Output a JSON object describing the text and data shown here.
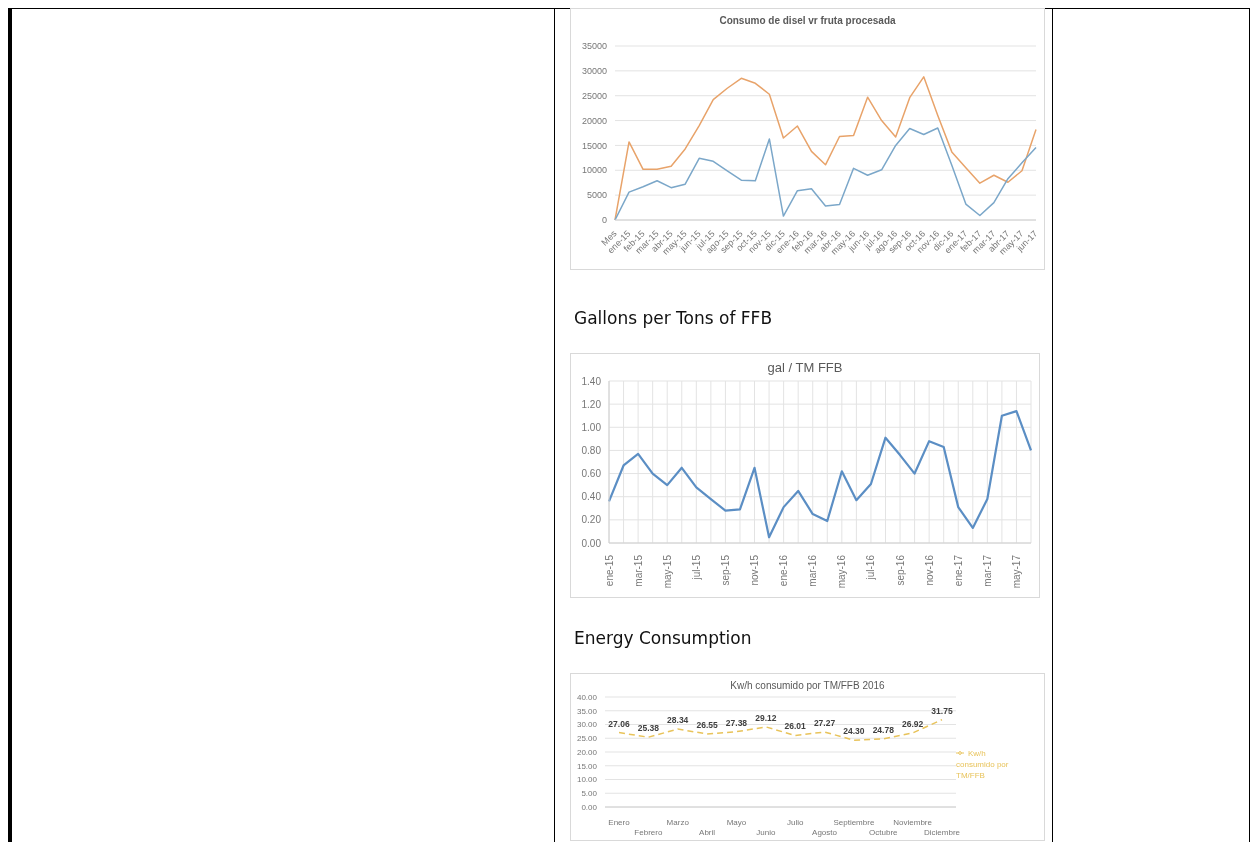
{
  "chart_data": [
    {
      "type": "line",
      "title": "Consumo de disel vr fruta procesada",
      "categories": [
        "Mes",
        "ene-15",
        "feb-15",
        "mar-15",
        "abr-15",
        "may-15",
        "jun-15",
        "jul-15",
        "ago-15",
        "sep-15",
        "oct-15",
        "nov-15",
        "dic-15",
        "ene-16",
        "feb-16",
        "mar-16",
        "abr-16",
        "may-16",
        "jun-16",
        "jul-16",
        "ago-16",
        "sep-16",
        "oct-16",
        "nov-16",
        "dic-16",
        "ene-17",
        "feb-17",
        "mar-17",
        "abr-17",
        "may-17",
        "jun-17"
      ],
      "series": [
        {
          "color": "#e8a36a",
          "values": [
            0,
            15700,
            10200,
            10200,
            10800,
            14300,
            19000,
            24200,
            26500,
            28500,
            27500,
            25300,
            16500,
            18900,
            13800,
            11100,
            16800,
            17000,
            24700,
            20000,
            16700,
            24600,
            28800,
            21000,
            13700,
            10500,
            7400,
            9000,
            7600,
            9900,
            18200
          ]
        },
        {
          "color": "#7ba7c9",
          "values": [
            0,
            5600,
            6700,
            7900,
            6500,
            7200,
            12400,
            11800,
            9900,
            8000,
            7900,
            16300,
            800,
            5900,
            6300,
            2800,
            3100,
            10400,
            9000,
            10100,
            15000,
            18400,
            17200,
            18500,
            11000,
            3200,
            900,
            3500,
            8300,
            11500,
            14600
          ]
        }
      ],
      "ylim": [
        0,
        35000
      ],
      "yticks": [
        0,
        5000,
        10000,
        15000,
        20000,
        25000,
        30000,
        35000
      ],
      "grid": "y"
    },
    {
      "type": "line",
      "title": "gal / TM FFB",
      "annotations": [
        "Gallons per Tons of FFB"
      ],
      "categories": [
        "ene-15",
        null,
        "mar-15",
        null,
        "may-15",
        null,
        "jul-15",
        null,
        "sep-15",
        null,
        "nov-15",
        null,
        "ene-16",
        null,
        "mar-16",
        null,
        "may-16",
        null,
        "jul-16",
        null,
        "sep-16",
        null,
        "nov-16",
        null,
        "ene-17",
        null,
        "mar-17",
        null,
        "may-17",
        null
      ],
      "series": [
        {
          "color": "#5b8ec4",
          "values": [
            0.36,
            0.67,
            0.77,
            0.6,
            0.5,
            0.65,
            0.48,
            0.38,
            0.28,
            0.29,
            0.65,
            0.05,
            0.31,
            0.45,
            0.25,
            0.19,
            0.62,
            0.37,
            0.51,
            0.91,
            0.76,
            0.6,
            0.88,
            0.83,
            0.31,
            0.13,
            0.38,
            1.1,
            1.14,
            0.8
          ]
        }
      ],
      "ylim": [
        0,
        1.4
      ],
      "yticks": [
        {
          "value": 0,
          "label": "0.00"
        },
        {
          "value": 0.2,
          "label": "0.20"
        },
        {
          "value": 0.4,
          "label": "0.40"
        },
        {
          "value": 0.6,
          "label": "0.60"
        },
        {
          "value": 0.8,
          "label": "0.80"
        },
        {
          "value": 1,
          "label": "1.00"
        },
        {
          "value": 1.2,
          "label": "1.20"
        },
        {
          "value": 1.4,
          "label": "1.40"
        }
      ],
      "grid": true
    },
    {
      "type": "line",
      "title": "Kw/h consumido por TM/FFB 2016",
      "annotations": [
        "Energy Consumption"
      ],
      "categories": [
        "Enero",
        "Febrero",
        "Marzo",
        "Abril",
        "Mayo",
        "Junio",
        "Julio",
        "Agosto",
        "Septiembre",
        "Octubre",
        "Noviembre",
        "Diciembre"
      ],
      "series": [
        {
          "name": "Kw/h consumido por TM/FFB",
          "color": "#e8c35a",
          "values": [
            27.06,
            25.38,
            28.34,
            26.55,
            27.38,
            29.12,
            26.01,
            27.27,
            24.3,
            24.78,
            26.92,
            31.75
          ],
          "value_labels": [
            "27.06",
            "25.38",
            "28.34",
            "26.55",
            "27.38",
            "29.12",
            "26.01",
            "27.27",
            "24.30",
            "24.78",
            "26.92",
            "31.75"
          ]
        }
      ],
      "ylim": [
        0,
        40
      ],
      "yticks": [
        {
          "value": 0,
          "label": "0.00"
        },
        {
          "value": 5,
          "label": "5.00"
        },
        {
          "value": 10,
          "label": "10.00"
        },
        {
          "value": 15,
          "label": "15.00"
        },
        {
          "value": 20,
          "label": "20.00"
        },
        {
          "value": 25,
          "label": "25.00"
        },
        {
          "value": 30,
          "label": "30.00"
        },
        {
          "value": 35,
          "label": "35.00"
        },
        {
          "value": 40,
          "label": "40.00"
        }
      ],
      "grid": "y",
      "legend": "right",
      "line_style": "dashed"
    }
  ]
}
